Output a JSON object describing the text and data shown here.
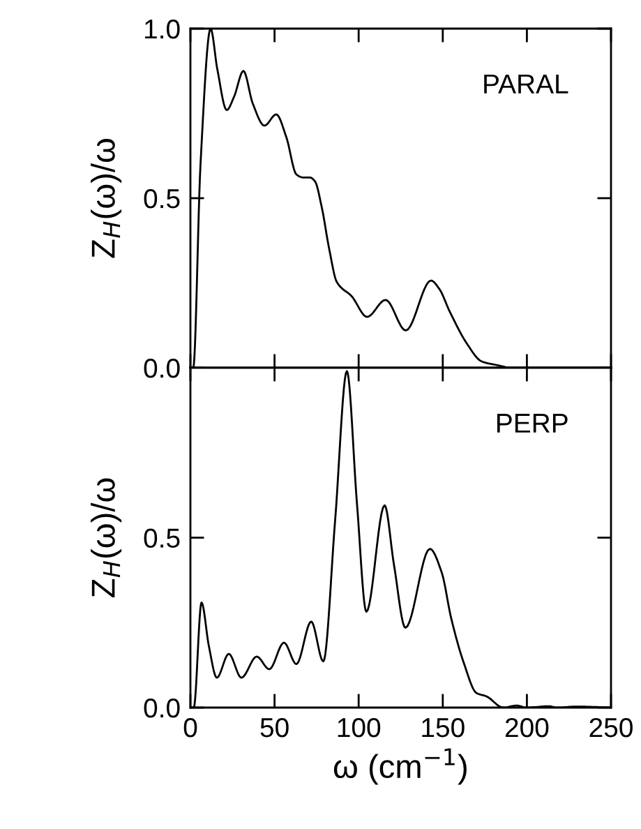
{
  "chart_data": [
    {
      "type": "line",
      "ylabel": "Z$_{H}$(ω)/ω",
      "annotations": [
        "PARAL"
      ],
      "xlim": [
        0,
        250
      ],
      "xticks": [
        0,
        50,
        100,
        150,
        200,
        250
      ],
      "ylim": [
        0,
        1.0
      ],
      "yticks": [
        {
          "value": 0,
          "label": "0.0"
        },
        {
          "value": 0.5,
          "label": "0.5"
        },
        {
          "value": 1.0,
          "label": "1.0"
        }
      ],
      "tick_labels": "y",
      "grid": false,
      "series": [
        {
          "color": "#000000",
          "x": [
            0,
            1.7,
            6,
            12,
            16,
            21.6,
            26,
            31.5,
            37,
            44,
            51,
            57,
            63,
            67,
            71,
            74,
            78,
            82.5,
            87,
            96,
            105,
            116,
            128,
            143,
            148,
            154,
            164.5,
            173,
            182,
            191,
            250
          ],
          "values": [
            0,
            0,
            0.6,
            1.0,
            0.88,
            0.76,
            0.8,
            0.875,
            0.78,
            0.714,
            0.747,
            0.68,
            0.57,
            0.561,
            0.561,
            0.55,
            0.475,
            0.35,
            0.253,
            0.21,
            0.15,
            0.2,
            0.11,
            0.257,
            0.232,
            0.167,
            0.07,
            0.019,
            0.008,
            0,
            0
          ]
        }
      ]
    },
    {
      "type": "line",
      "xlabel": "ω (cm$^{−1}$)",
      "ylabel": "Z$_{H}$(ω)/ω",
      "annotations": [
        "PERP"
      ],
      "xlim": [
        0,
        250
      ],
      "xticks": [
        0,
        50,
        100,
        150,
        200,
        250
      ],
      "ylim": [
        0,
        1.0
      ],
      "yticks": [
        {
          "value": 0,
          "label": "0.0"
        },
        {
          "value": 0.5,
          "label": "0.5"
        }
      ],
      "grid": false,
      "series": [
        {
          "color": "#000000",
          "x": [
            0,
            2,
            6.6,
            11,
            15.7,
            22.8,
            30.3,
            39.4,
            46.9,
            55.6,
            63,
            71.8,
            79,
            86,
            93,
            99,
            104.6,
            115.4,
            121,
            127.8,
            142.3,
            149.4,
            155,
            162.6,
            170,
            176,
            186,
            194,
            199.6,
            213,
            218,
            229,
            250
          ],
          "values": [
            0,
            0,
            0.309,
            0.18,
            0.088,
            0.158,
            0.088,
            0.15,
            0.113,
            0.191,
            0.128,
            0.253,
            0.136,
            0.55,
            0.99,
            0.6,
            0.282,
            0.595,
            0.42,
            0.235,
            0.467,
            0.397,
            0.263,
            0.13,
            0.043,
            0.033,
            0,
            0.006,
            0,
            0.004,
            0,
            0.003,
            0
          ]
        }
      ]
    }
  ]
}
